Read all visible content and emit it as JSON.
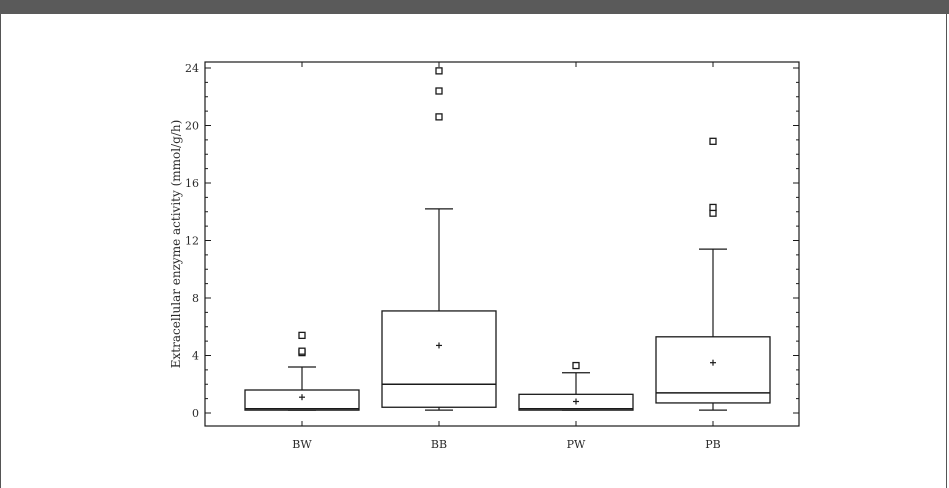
{
  "chart_data": {
    "type": "box",
    "title": "",
    "xlabel": "",
    "ylabel": "Extracellular enzyme activity (mmol/g/h)",
    "ylim": [
      -1,
      24.5
    ],
    "yticks": [
      "0",
      "4",
      "8",
      "12",
      "16",
      "20",
      "24"
    ],
    "categories": [
      "BW",
      "BB",
      "PW",
      "PB"
    ],
    "boxes": [
      {
        "name": "BW",
        "min": 0.2,
        "q1": 0.2,
        "median": 0.3,
        "q3": 1.6,
        "max": 3.2,
        "mean": 1.1,
        "outliers": [
          4.2,
          4.3,
          5.4
        ]
      },
      {
        "name": "BB",
        "min": 0.2,
        "q1": 0.4,
        "median": 2.0,
        "q3": 7.1,
        "max": 14.2,
        "mean": 4.7,
        "outliers": [
          20.6,
          22.4,
          23.8
        ]
      },
      {
        "name": "PW",
        "min": 0.2,
        "q1": 0.2,
        "median": 0.3,
        "q3": 1.3,
        "max": 2.8,
        "mean": 0.8,
        "outliers": [
          3.3
        ]
      },
      {
        "name": "PB",
        "min": 0.2,
        "q1": 0.7,
        "median": 1.4,
        "q3": 5.3,
        "max": 11.4,
        "mean": 3.5,
        "outliers": [
          13.9,
          14.3,
          18.9
        ]
      }
    ],
    "grid": false,
    "legend": "none",
    "colors": {
      "stroke": "#1a1a1a",
      "text": "#2a2a2a"
    }
  }
}
